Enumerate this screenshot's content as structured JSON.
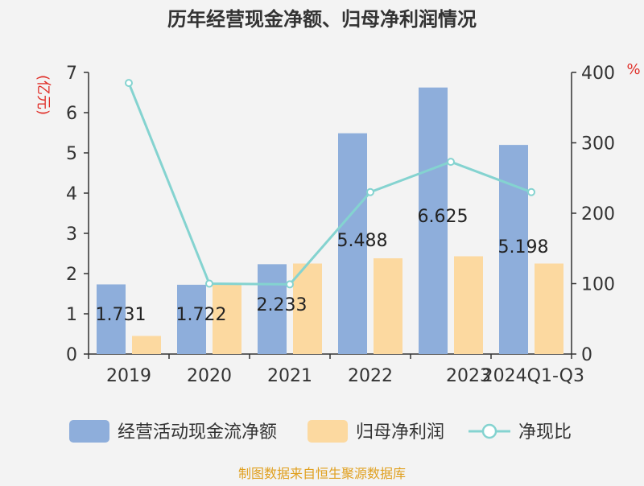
{
  "chart_data": {
    "type": "bar",
    "title": "历年经营现金净额、归母净利润情况",
    "categories": [
      "2019",
      "2020",
      "2021",
      "2022",
      "2023",
      "2024Q1-Q3"
    ],
    "series": [
      {
        "name": "经营活动现金流净额",
        "type": "bar",
        "axis": "left",
        "color": "#8eaedb",
        "values": [
          1.731,
          1.722,
          2.233,
          5.488,
          6.625,
          5.198
        ],
        "labels": [
          "1.731",
          "1.722",
          "2.233",
          "5.488",
          "6.625",
          "5.198"
        ]
      },
      {
        "name": "归母净利润",
        "type": "bar",
        "axis": "left",
        "color": "#fcd9a0",
        "values": [
          0.45,
          1.72,
          2.25,
          2.38,
          2.43,
          2.25
        ]
      },
      {
        "name": "净现比",
        "type": "line",
        "axis": "right",
        "color": "#84d3d0",
        "values": [
          385,
          100,
          99,
          230,
          273,
          230
        ]
      }
    ],
    "y_left": {
      "label": "(亿元)",
      "min": 0,
      "max": 7,
      "ticks": [
        0,
        1,
        2,
        3,
        4,
        5,
        6,
        7
      ],
      "label_color": "#e0302a"
    },
    "y_right": {
      "label": "%",
      "min": 0,
      "max": 400,
      "ticks": [
        0,
        100,
        200,
        300,
        400
      ],
      "label_color": "#e0302a"
    },
    "legend_position": "bottom",
    "grid": false
  },
  "footer": {
    "source": "制图数据来自恒生聚源数据库",
    "color": "#e0a020"
  }
}
